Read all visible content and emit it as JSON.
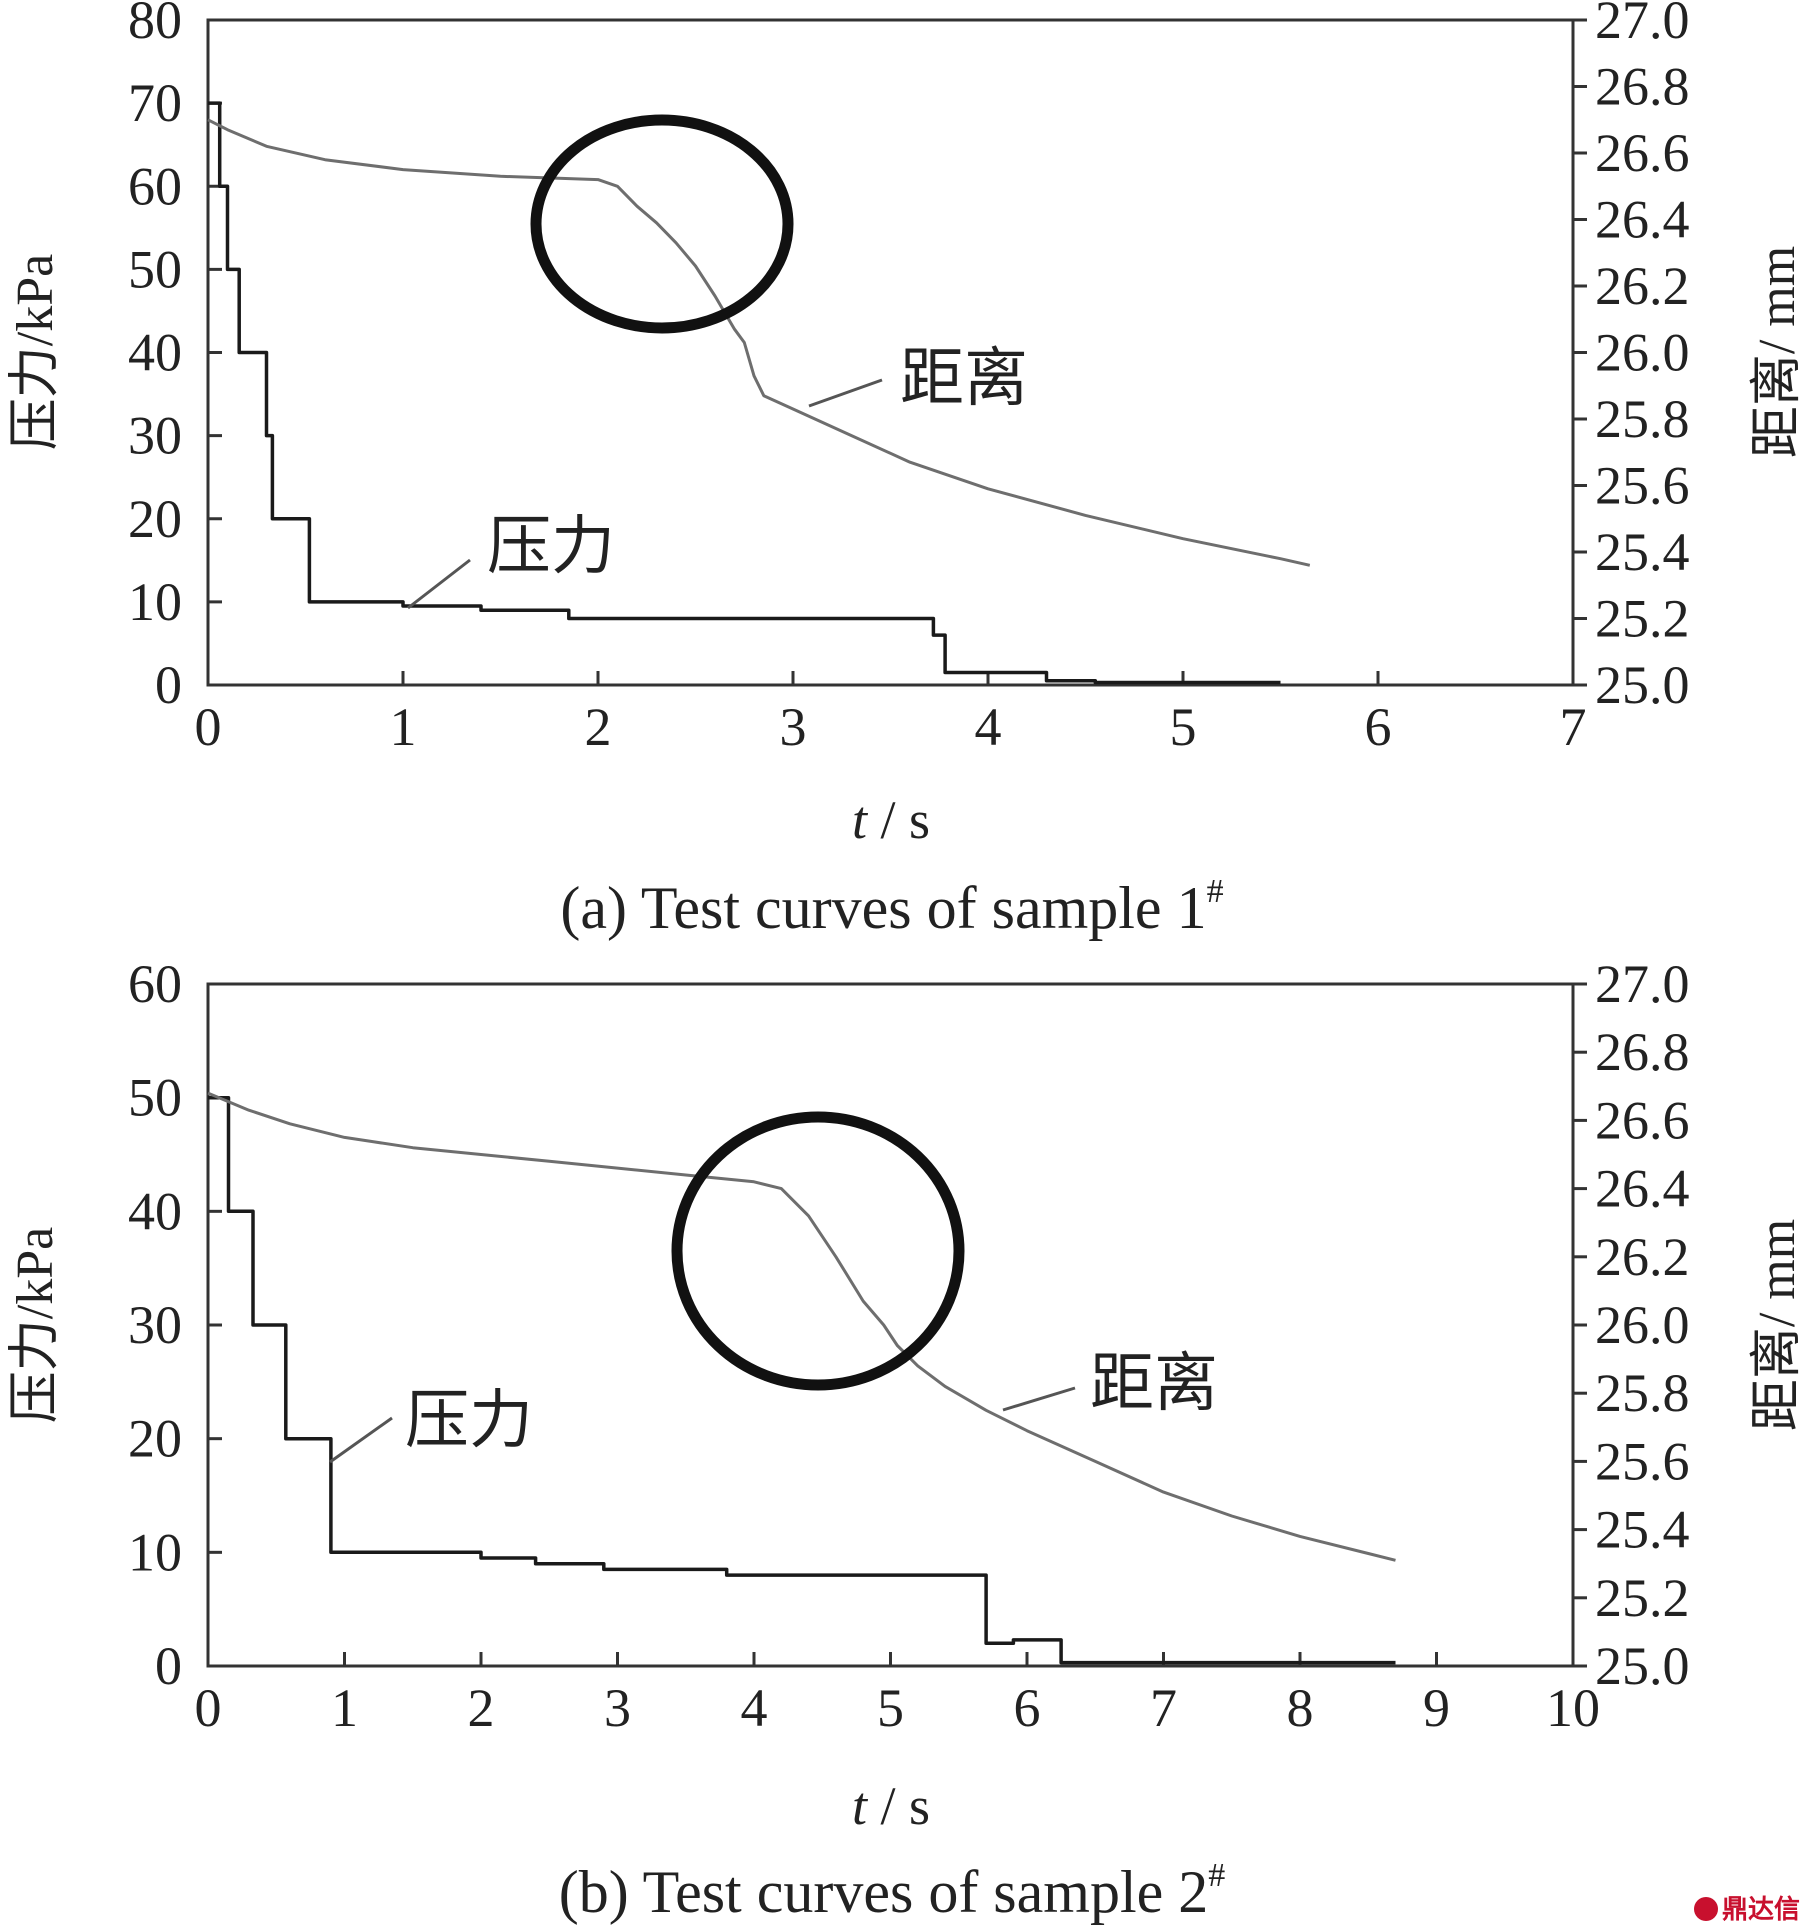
{
  "chart_data": [
    {
      "type": "line",
      "caption": "(a) Test curves of sample 1",
      "caption_sup": "#",
      "xlabel_var": "t",
      "xlabel_unit": " / s",
      "ylabel_left": "压力/kPa",
      "ylabel_right": "距离/ mm",
      "xlim": [
        0,
        7
      ],
      "ylim_left": [
        0,
        80
      ],
      "ylim_right": [
        25.0,
        27.0
      ],
      "x_ticks": [
        "0",
        "1",
        "2",
        "3",
        "4",
        "5",
        "6",
        "7"
      ],
      "y_left_ticks": [
        "0",
        "10",
        "20",
        "30",
        "40",
        "50",
        "60",
        "70",
        "80"
      ],
      "y_right_ticks": [
        "25.0",
        "25.2",
        "25.4",
        "25.6",
        "25.8",
        "26.0",
        "26.2",
        "26.4",
        "26.6",
        "26.8",
        "27.0"
      ],
      "series": [
        {
          "name": "压力",
          "axis": "left",
          "color": "#1a1a1a",
          "x": [
            0.0,
            0.06,
            0.06,
            0.1,
            0.1,
            0.16,
            0.16,
            0.2,
            0.2,
            0.3,
            0.3,
            0.33,
            0.33,
            0.52,
            0.52,
            1.0,
            1.0,
            1.4,
            1.4,
            1.85,
            1.85,
            2.3,
            2.3,
            3.72,
            3.72,
            3.78,
            3.78,
            4.3,
            4.3,
            4.55,
            4.55,
            5.5
          ],
          "y": [
            70,
            70,
            60,
            60,
            50,
            50,
            40,
            40,
            40,
            40,
            30,
            30,
            20,
            20,
            10,
            10,
            9.5,
            9.5,
            9,
            9,
            8,
            8,
            8,
            8,
            6,
            6,
            1.5,
            1.5,
            0.5,
            0.5,
            0.3,
            0.3
          ]
        },
        {
          "name": "距离",
          "axis": "right",
          "color": "#6e6e6e",
          "x": [
            0.0,
            0.1,
            0.3,
            0.6,
            1.0,
            1.5,
            2.0,
            2.1,
            2.2,
            2.3,
            2.4,
            2.5,
            2.6,
            2.7,
            2.75,
            2.8,
            2.85,
            3.0,
            3.3,
            3.6,
            4.0,
            4.5,
            5.0,
            5.5,
            5.65
          ],
          "y": [
            26.7,
            26.67,
            26.62,
            26.58,
            26.55,
            26.53,
            26.52,
            26.5,
            26.44,
            26.39,
            26.33,
            26.26,
            26.17,
            26.07,
            26.03,
            25.93,
            25.87,
            25.83,
            25.75,
            25.67,
            25.59,
            25.51,
            25.44,
            25.38,
            25.36
          ]
        }
      ],
      "annotations": [
        "距离",
        "压力"
      ]
    },
    {
      "type": "line",
      "caption": "(b) Test curves of sample 2",
      "caption_sup": "#",
      "xlabel_var": "t",
      "xlabel_unit": " / s",
      "ylabel_left": "压力/kPa",
      "ylabel_right": "距离/ mm",
      "xlim": [
        0,
        10
      ],
      "ylim_left": [
        0,
        60
      ],
      "ylim_right": [
        25.0,
        27.0
      ],
      "x_ticks": [
        "0",
        "1",
        "2",
        "3",
        "4",
        "5",
        "6",
        "7",
        "8",
        "9",
        "10"
      ],
      "y_left_ticks": [
        "0",
        "10",
        "20",
        "30",
        "40",
        "50",
        "60"
      ],
      "y_right_ticks": [
        "25.0",
        "25.2",
        "25.4",
        "25.6",
        "25.8",
        "26.0",
        "26.2",
        "26.4",
        "26.6",
        "26.8",
        "27.0"
      ],
      "series": [
        {
          "name": "压力",
          "axis": "left",
          "color": "#1a1a1a",
          "x": [
            0.0,
            0.15,
            0.15,
            0.33,
            0.33,
            0.57,
            0.57,
            0.9,
            0.9,
            2.0,
            2.0,
            2.4,
            2.4,
            2.9,
            2.9,
            3.8,
            3.8,
            5.7,
            5.7,
            5.9,
            5.9,
            6.25,
            6.25,
            8.7
          ],
          "y": [
            50,
            50,
            40,
            40,
            30,
            30,
            20,
            20,
            10,
            10,
            9.5,
            9.5,
            9,
            9,
            8.5,
            8.5,
            8,
            8,
            2,
            2,
            2.3,
            2.3,
            0.3,
            0.3
          ]
        },
        {
          "name": "距离",
          "axis": "right",
          "color": "#6e6e6e",
          "x": [
            0.0,
            0.3,
            0.6,
            1.0,
            1.5,
            2.0,
            2.5,
            3.0,
            3.5,
            4.0,
            4.2,
            4.4,
            4.6,
            4.8,
            4.95,
            5.05,
            5.2,
            5.4,
            5.7,
            6.0,
            6.5,
            7.0,
            7.5,
            8.0,
            8.5,
            8.7
          ],
          "y": [
            26.68,
            26.63,
            26.59,
            26.55,
            26.52,
            26.5,
            26.48,
            26.46,
            26.44,
            26.42,
            26.4,
            26.32,
            26.2,
            26.07,
            26.0,
            25.94,
            25.88,
            25.82,
            25.75,
            25.69,
            25.6,
            25.51,
            25.44,
            25.38,
            25.33,
            25.31
          ]
        }
      ],
      "annotations": [
        "距离",
        "压力"
      ]
    }
  ],
  "highlight": {
    "shape": "circle",
    "color": "#000000"
  },
  "watermark": "鼎达信"
}
